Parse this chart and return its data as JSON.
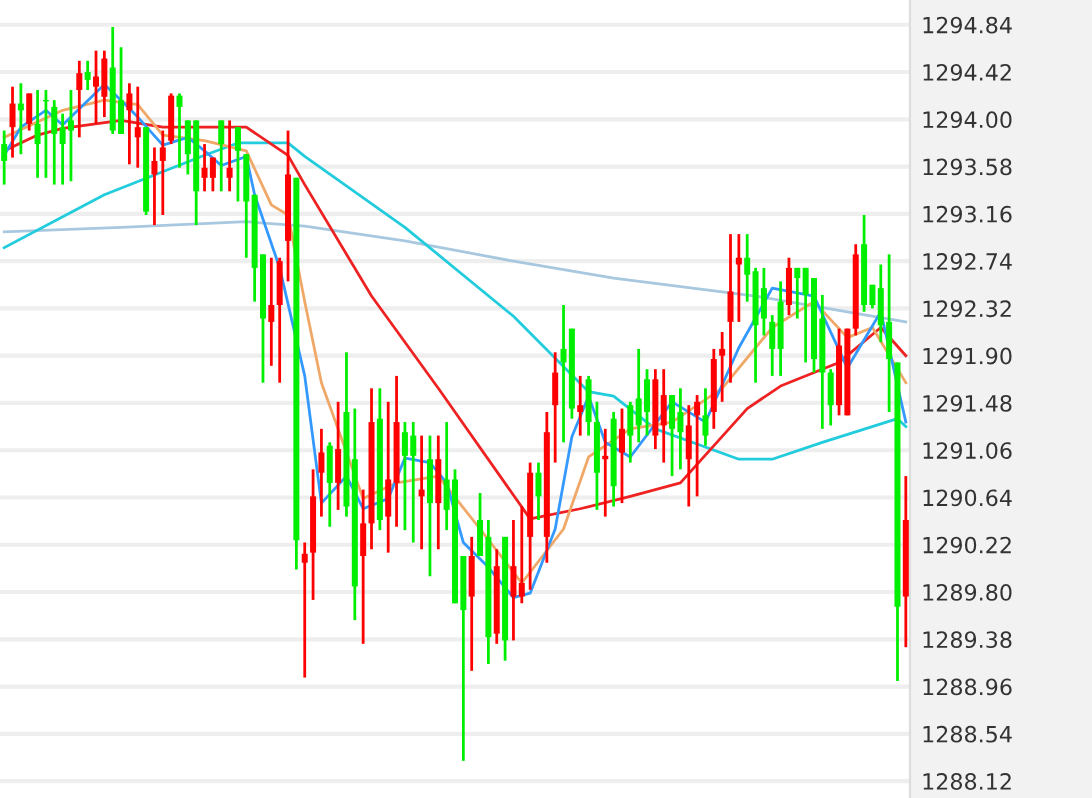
{
  "chart_data": {
    "type": "candlestick",
    "categories": [
      null,
      null,
      null,
      null,
      null,
      null,
      null,
      null,
      null,
      null,
      null,
      null,
      null,
      null,
      null,
      null,
      null,
      null,
      null,
      null,
      null,
      null,
      null,
      null,
      null,
      null,
      null,
      null,
      null,
      null,
      null,
      null,
      null,
      null,
      null,
      null,
      null,
      null,
      null,
      null,
      null,
      null,
      null,
      null,
      null,
      null,
      null,
      null,
      null,
      null,
      null,
      null,
      null,
      null,
      null,
      null,
      null,
      null,
      null,
      null,
      null,
      null,
      null,
      null,
      null,
      null,
      null,
      null,
      null,
      null,
      null,
      null,
      null,
      null,
      null,
      null,
      null,
      null,
      null,
      null,
      null,
      null,
      null,
      null,
      null,
      null,
      null,
      null,
      null,
      null,
      null,
      null,
      null,
      null,
      null,
      null,
      null,
      null,
      null,
      null,
      null,
      null,
      null,
      null,
      null,
      null,
      null,
      null,
      null
    ],
    "ohlc": [
      [
        1293.78,
        1293.9,
        1293.42,
        1293.63
      ],
      [
        1293.93,
        1294.29,
        1293.66,
        1294.14
      ],
      [
        1294.14,
        1294.32,
        1293.69,
        1294.08
      ],
      [
        1293.96,
        1294.23,
        1293.9,
        1294.23
      ],
      [
        1293.96,
        1294.26,
        1293.48,
        1293.78
      ],
      [
        1294.17,
        1294.26,
        1293.48,
        1294.16
      ],
      [
        1294.11,
        1294.17,
        1293.42,
        1293.87
      ],
      [
        1293.93,
        1294.05,
        1293.42,
        1293.78
      ],
      [
        1293.99,
        1294.26,
        1293.45,
        1293.9
      ],
      [
        1294.26,
        1294.52,
        1293.84,
        1294.41
      ],
      [
        1294.42,
        1294.52,
        1294.26,
        1294.35
      ],
      [
        1294.29,
        1294.61,
        1293.96,
        1294.38
      ],
      [
        1294.2,
        1294.61,
        1294.02,
        1294.54
      ],
      [
        1294.46,
        1294.82,
        1293.87,
        1293.9
      ],
      [
        1294.17,
        1294.64,
        1293.87,
        1293.87
      ],
      [
        1294.08,
        1294.32,
        1293.6,
        1294.23
      ],
      [
        1293.84,
        1294.29,
        1293.57,
        1293.93
      ],
      [
        1293.93,
        1293.93,
        1293.15,
        1293.18
      ],
      [
        1293.51,
        1293.75,
        1293.06,
        1293.63
      ],
      [
        1293.63,
        1293.9,
        1293.15,
        1293.75
      ],
      [
        1293.81,
        1294.23,
        1293.78,
        1294.21
      ],
      [
        1294.21,
        1294.23,
        1293.57,
        1294.11
      ],
      [
        1293.99,
        1293.99,
        1293.51,
        1293.69
      ],
      [
        1293.99,
        1293.99,
        1293.06,
        1293.36
      ],
      [
        1293.48,
        1293.78,
        1293.36,
        1293.57
      ],
      [
        1293.48,
        1293.66,
        1293.36,
        1293.66
      ],
      [
        1293.99,
        1293.99,
        1293.36,
        1293.78
      ],
      [
        1293.48,
        1293.99,
        1293.36,
        1293.57
      ],
      [
        1293.93,
        1293.93,
        1293.27,
        1293.72
      ],
      [
        1293.69,
        1293.69,
        1292.77,
        1293.27
      ],
      [
        1293.33,
        1293.33,
        1292.38,
        1292.68
      ],
      [
        1292.8,
        1292.8,
        1291.66,
        1292.23
      ],
      [
        1292.2,
        1292.77,
        1291.81,
        1292.35
      ],
      [
        1292.35,
        1292.77,
        1291.66,
        1292.74
      ],
      [
        1292.92,
        1293.9,
        1292.56,
        1293.51
      ],
      [
        1293.48,
        1293.48,
        1290.0,
        1290.26
      ],
      [
        1290.06,
        1290.24,
        1289.04,
        1290.14
      ],
      [
        1290.15,
        1290.89,
        1289.73,
        1290.65
      ],
      [
        1290.86,
        1291.25,
        1290.47,
        1291.04
      ],
      [
        1291.1,
        1291.13,
        1290.38,
        1290.77
      ],
      [
        1290.77,
        1291.49,
        1290.53,
        1291.07
      ],
      [
        1291.4,
        1291.93,
        1290.47,
        1290.56
      ],
      [
        1290.98,
        1291.43,
        1289.55,
        1289.85
      ],
      [
        1290.12,
        1290.71,
        1289.34,
        1290.41
      ],
      [
        1290.41,
        1291.61,
        1290.18,
        1291.31
      ],
      [
        1291.34,
        1291.61,
        1290.35,
        1290.44
      ],
      [
        1290.47,
        1291.49,
        1290.15,
        1290.8
      ],
      [
        1290.77,
        1291.72,
        1290.38,
        1291.31
      ],
      [
        1291.22,
        1291.31,
        1290.35,
        1291.01
      ],
      [
        1291.19,
        1291.31,
        1290.24,
        1291.01
      ],
      [
        1290.65,
        1291.19,
        1290.18,
        1290.71
      ],
      [
        1290.98,
        1291.19,
        1289.94,
        1290.59
      ],
      [
        1290.59,
        1291.19,
        1290.18,
        1290.98
      ],
      [
        1290.8,
        1291.31,
        1290.35,
        1290.53
      ],
      [
        1290.8,
        1290.89,
        1289.7,
        1289.7
      ],
      [
        1290.12,
        1290.12,
        1288.3,
        1289.64
      ],
      [
        1289.76,
        1290.29,
        1289.1,
        1290.12
      ],
      [
        1290.44,
        1290.68,
        1290.12,
        1290.12
      ],
      [
        1290.29,
        1290.44,
        1289.16,
        1289.4
      ],
      [
        1289.43,
        1290.18,
        1289.34,
        1290.03
      ],
      [
        1290.29,
        1290.29,
        1289.19,
        1289.37
      ],
      [
        1289.76,
        1290.44,
        1289.37,
        1290.03
      ],
      [
        1289.76,
        1290.56,
        1289.7,
        1289.88
      ],
      [
        1290.29,
        1290.95,
        1289.82,
        1290.86
      ],
      [
        1290.86,
        1290.95,
        1290.44,
        1290.65
      ],
      [
        1290.29,
        1291.4,
        1290.06,
        1291.22
      ],
      [
        1291.46,
        1291.93,
        1290.95,
        1291.75
      ],
      [
        1291.96,
        1292.35,
        1291.13,
        1291.84
      ],
      [
        1292.14,
        1292.14,
        1291.34,
        1291.43
      ],
      [
        1291.4,
        1291.72,
        1291.19,
        1291.46
      ],
      [
        1291.69,
        1291.72,
        1291.19,
        1291.31
      ],
      [
        1291.31,
        1291.49,
        1290.53,
        1290.86
      ],
      [
        1290.98,
        1291.25,
        1290.47,
        1291.01
      ],
      [
        1291.34,
        1291.4,
        1290.56,
        1290.74
      ],
      [
        1291.04,
        1291.43,
        1290.59,
        1291.25
      ],
      [
        1291.46,
        1291.49,
        1290.95,
        1291.19
      ],
      [
        1291.52,
        1291.96,
        1291.13,
        1291.28
      ],
      [
        1291.69,
        1291.78,
        1291.19,
        1291.4
      ],
      [
        1291.19,
        1291.78,
        1291.07,
        1291.69
      ],
      [
        1291.28,
        1291.78,
        1290.95,
        1291.55
      ],
      [
        1291.55,
        1291.55,
        1290.83,
        1291.25
      ],
      [
        1291.4,
        1291.61,
        1290.89,
        1291.22
      ],
      [
        1290.98,
        1291.46,
        1290.56,
        1291.28
      ],
      [
        1291.37,
        1291.55,
        1290.65,
        1291.49
      ],
      [
        1291.37,
        1291.61,
        1291.1,
        1291.19
      ],
      [
        1291.4,
        1291.96,
        1291.25,
        1291.87
      ],
      [
        1291.9,
        1292.11,
        1291.49,
        1291.96
      ],
      [
        1292.2,
        1292.98,
        1291.66,
        1292.47
      ],
      [
        1292.71,
        1292.98,
        1292.2,
        1292.77
      ],
      [
        1292.77,
        1292.98,
        1292.38,
        1292.62
      ],
      [
        1292.65,
        1292.68,
        1291.66,
        1292.17
      ],
      [
        1292.5,
        1292.68,
        1292.08,
        1292.23
      ],
      [
        1292.2,
        1292.26,
        1291.72,
        1291.96
      ],
      [
        1292.38,
        1292.56,
        1291.72,
        1291.96
      ],
      [
        1292.35,
        1292.77,
        1292.26,
        1292.68
      ],
      [
        1292.68,
        1292.68,
        1292.23,
        1292.59
      ],
      [
        1292.68,
        1292.68,
        1291.84,
        1292.44
      ],
      [
        1292.59,
        1292.59,
        1291.75,
        1291.87
      ],
      [
        1292.23,
        1292.44,
        1291.25,
        1291.75
      ],
      [
        1291.75,
        1291.78,
        1291.28,
        1291.46
      ],
      [
        1291.46,
        1292.14,
        1291.37,
        1291.99
      ],
      [
        1291.37,
        1292.14,
        1291.37,
        1292.14
      ],
      [
        1292.14,
        1292.89,
        1292.08,
        1292.8
      ],
      [
        1292.89,
        1293.15,
        1292.29,
        1292.35
      ],
      [
        1292.53,
        1292.53,
        1292.32,
        1292.35
      ],
      [
        1292.5,
        1292.71,
        1292.02,
        1292.17
      ],
      [
        1292.2,
        1292.8,
        1291.4,
        1291.87
      ],
      [
        1291.84,
        1291.84,
        1289.01,
        1289.67
      ],
      [
        1289.76,
        1290.83,
        1289.31,
        1290.44
      ]
    ],
    "colors": [
      "#00ee00",
      "#ff0000",
      "#00ee00",
      "#ff0000",
      "#00ee00",
      "#00ee00",
      "#00ee00",
      "#00ee00",
      "#00ee00",
      "#ff0000",
      "#00ee00",
      "#ff0000",
      "#ff0000",
      "#00ee00",
      "#00ee00",
      "#ff0000",
      "#ff0000",
      "#00ee00",
      "#ff0000",
      "#ff0000",
      "#ff0000",
      "#00ee00",
      "#00ee00",
      "#00ee00",
      "#ff0000",
      "#ff0000",
      "#00ee00",
      "#ff0000",
      "#00ee00",
      "#00ee00",
      "#00ee00",
      "#00ee00",
      "#ff0000",
      "#ff0000",
      "#ff0000",
      "#00ee00",
      "#ff0000",
      "#ff0000",
      "#ff0000",
      "#00ee00",
      "#ff0000",
      "#00ee00",
      "#00ee00",
      "#ff0000",
      "#ff0000",
      "#00ee00",
      "#ff0000",
      "#ff0000",
      "#00ee00",
      "#00ee00",
      "#ff0000",
      "#00ee00",
      "#ff0000",
      "#00ee00",
      "#00ee00",
      "#00ee00",
      "#ff0000",
      "#00ee00",
      "#00ee00",
      "#ff0000",
      "#00ee00",
      "#ff0000",
      "#ff0000",
      "#ff0000",
      "#00ee00",
      "#ff0000",
      "#ff0000",
      "#00ee00",
      "#00ee00",
      "#ff0000",
      "#00ee00",
      "#00ee00",
      "#ff0000",
      "#00ee00",
      "#ff0000",
      "#00ee00",
      "#00ee00",
      "#00ee00",
      "#ff0000",
      "#ff0000",
      "#00ee00",
      "#00ee00",
      "#ff0000",
      "#ff0000",
      "#00ee00",
      "#ff0000",
      "#ff0000",
      "#ff0000",
      "#ff0000",
      "#00ee00",
      "#00ee00",
      "#00ee00",
      "#00ee00",
      "#00ee00",
      "#ff0000",
      "#00ee00",
      "#00ee00",
      "#00ee00",
      "#00ee00",
      "#00ee00",
      "#ff0000",
      "#ff0000",
      "#ff0000",
      "#00ee00",
      "#00ee00",
      "#00ee00",
      "#00ee00",
      "#00ee00",
      "#ff0000"
    ],
    "series": [
      {
        "type": "line",
        "color": "#a8c8e0",
        "values": [
          1293.0,
          null,
          null,
          null,
          null,
          null,
          null,
          null,
          null,
          null,
          null,
          null,
          null,
          null,
          1293.04,
          null,
          null,
          null,
          null,
          null,
          null,
          null,
          null,
          null,
          null,
          null,
          null,
          null,
          null,
          1293.09,
          null,
          null,
          null,
          null,
          null,
          null,
          1293.05,
          null,
          null,
          null,
          null,
          null,
          null,
          null,
          null,
          null,
          null,
          null,
          1292.92,
          null,
          null,
          null,
          null,
          null,
          null,
          null,
          null,
          null,
          null,
          null,
          null,
          1292.74,
          null,
          null,
          null,
          null,
          null,
          null,
          null,
          null,
          null,
          null,
          null,
          1292.59,
          null,
          null,
          null,
          null,
          null,
          null,
          null,
          null,
          null,
          null,
          null,
          null,
          null,
          null,
          null,
          null,
          1292.43,
          null,
          null,
          null,
          null,
          null,
          null,
          null,
          null,
          null,
          null,
          1292.29,
          null,
          null,
          null,
          null,
          null,
          null,
          1292.2
        ]
      },
      {
        "type": "line",
        "color": "#22ccdd",
        "values": [
          1292.86,
          null,
          null,
          null,
          null,
          null,
          null,
          null,
          null,
          null,
          null,
          null,
          1293.33,
          null,
          null,
          null,
          null,
          null,
          null,
          null,
          null,
          null,
          null,
          null,
          1293.68,
          null,
          null,
          null,
          1293.79,
          null,
          null,
          null,
          null,
          null,
          1293.79,
          null,
          1293.67,
          null,
          null,
          null,
          null,
          null,
          null,
          null,
          null,
          null,
          null,
          null,
          1293.04,
          null,
          null,
          null,
          null,
          null,
          null,
          null,
          null,
          null,
          null,
          null,
          null,
          1292.25,
          null,
          null,
          null,
          null,
          null,
          null,
          null,
          null,
          1291.58,
          null,
          null,
          1291.54,
          null,
          null,
          null,
          null,
          1291.25,
          null,
          null,
          null,
          null,
          null,
          null,
          null,
          null,
          null,
          1290.98,
          null,
          null,
          null,
          1290.98,
          null,
          null,
          null,
          null,
          null,
          1291.13,
          null,
          null,
          null,
          null,
          null,
          null,
          null,
          null,
          1291.34,
          1291.27
        ]
      },
      {
        "type": "line",
        "color": "#ee2222",
        "values": [
          1293.72,
          null,
          null,
          null,
          1293.86,
          null,
          null,
          1293.92,
          null,
          null,
          null,
          null,
          null,
          null,
          1293.99,
          null,
          null,
          null,
          null,
          1293.93,
          null,
          null,
          null,
          null,
          null,
          null,
          null,
          null,
          null,
          1293.93,
          null,
          null,
          null,
          null,
          1293.68,
          null,
          1293.42,
          null,
          null,
          null,
          null,
          null,
          null,
          null,
          1292.43,
          null,
          null,
          null,
          null,
          null,
          null,
          null,
          1291.61,
          null,
          null,
          null,
          null,
          null,
          null,
          null,
          null,
          null,
          null,
          1290.45,
          null,
          null,
          null,
          null,
          null,
          1290.54,
          null,
          null,
          null,
          null,
          null,
          1290.65,
          null,
          null,
          null,
          null,
          null,
          1290.77,
          null,
          null,
          null,
          null,
          null,
          null,
          null,
          1291.43,
          null,
          null,
          null,
          1291.63,
          null,
          null,
          null,
          null,
          null,
          null,
          1291.84,
          null,
          null,
          null,
          null,
          1292.15,
          null,
          null,
          1291.9
        ]
      },
      {
        "type": "line",
        "color": "#f0a868",
        "values": [
          1293.84,
          null,
          null,
          null,
          null,
          null,
          null,
          1294.08,
          null,
          null,
          null,
          null,
          1294.17,
          null,
          null,
          null,
          1294.13,
          null,
          null,
          1293.86,
          null,
          null,
          null,
          null,
          1293.81,
          null,
          null,
          null,
          null,
          1293.72,
          null,
          null,
          1293.24,
          null,
          1293.15,
          null,
          1292.38,
          null,
          1291.66,
          null,
          null,
          null,
          null,
          1290.63,
          null,
          null,
          null,
          1290.77,
          null,
          null,
          null,
          null,
          1290.83,
          null,
          null,
          null,
          null,
          1290.36,
          null,
          null,
          null,
          null,
          1289.88,
          null,
          null,
          null,
          null,
          1290.36,
          null,
          null,
          1291.0,
          null,
          null,
          null,
          null,
          1291.25,
          null,
          null,
          null,
          null,
          1291.31,
          null,
          null,
          null,
          null,
          null,
          1291.61,
          null,
          null,
          null,
          null,
          null,
          1292.15,
          null,
          null,
          null,
          null,
          1292.38,
          null,
          null,
          null,
          1292.06,
          null,
          null,
          1292.15,
          null,
          null,
          null,
          1291.66
        ]
      },
      {
        "type": "line",
        "color": "#3399ff",
        "values": [
          1293.68,
          null,
          1293.93,
          null,
          null,
          1294.08,
          null,
          1293.95,
          null,
          null,
          null,
          null,
          1294.31,
          null,
          1294.17,
          null,
          1294.02,
          null,
          null,
          1293.77,
          null,
          null,
          1293.84,
          null,
          1293.72,
          null,
          1293.59,
          null,
          null,
          1293.67,
          1293.33,
          null,
          null,
          1292.68,
          null,
          null,
          1291.72,
          null,
          1290.59,
          null,
          null,
          1290.83,
          null,
          1290.54,
          null,
          null,
          1290.63,
          null,
          1290.99,
          null,
          null,
          1290.95,
          null,
          1290.77,
          null,
          1290.24,
          null,
          null,
          1290.02,
          null,
          null,
          1289.75,
          null,
          1289.79,
          null,
          null,
          1290.36,
          null,
          1291.18,
          null,
          1291.54,
          null,
          1291.13,
          null,
          null,
          1291.0,
          null,
          null,
          null,
          null,
          1291.49,
          null,
          null,
          null,
          1291.31,
          null,
          null,
          null,
          1291.97,
          null,
          null,
          null,
          1292.5,
          null,
          null,
          null,
          null,
          1292.43,
          null,
          null,
          null,
          1291.79,
          null,
          null,
          null,
          1292.29,
          null,
          null,
          1291.31
        ]
      }
    ],
    "ylim": [
      1287.97,
      1295.06
    ],
    "yticks": [
      1294.84,
      1294.42,
      {
        "value": 1294.0,
        "label": "1294.00"
      },
      1293.58,
      1293.16,
      1292.74,
      1292.32,
      {
        "value": 1291.9,
        "label": "1291.90"
      },
      1291.48,
      1291.06,
      1290.64,
      1290.22,
      {
        "value": 1289.8,
        "label": "1289.80"
      },
      1289.38,
      1288.96,
      1288.54,
      1288.12
    ],
    "grid": "y",
    "tick_labels": "y"
  }
}
